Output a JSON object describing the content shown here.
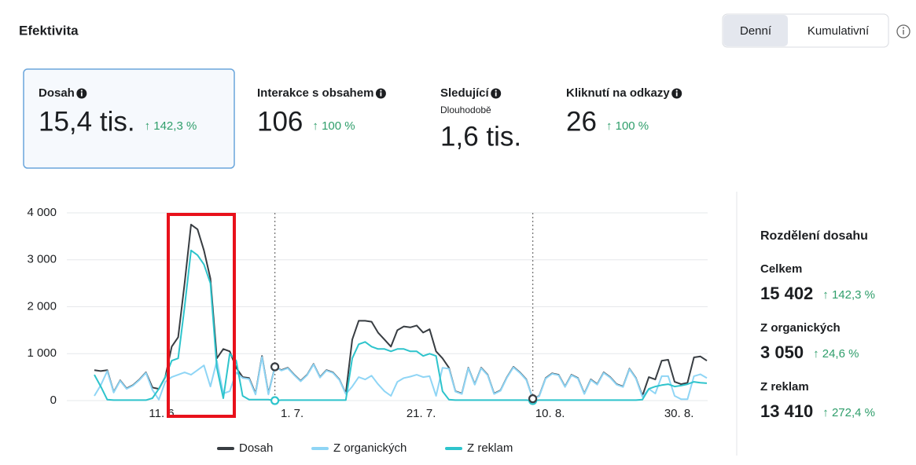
{
  "header": {
    "title": "Efektivita",
    "toggle": [
      "Denní",
      "Kumulativní"
    ]
  },
  "metrics": [
    {
      "label": "Dosah",
      "value": "15,4 tis.",
      "change": "↑ 142,3 %"
    },
    {
      "label": "Interakce s obsahem",
      "value": "106",
      "change": "↑ 100 %"
    },
    {
      "label": "Sledující",
      "sublabel": "Dlouhodobě",
      "value": "1,6 tis."
    },
    {
      "label": "Kliknutí na odkazy",
      "value": "26",
      "change": "↑ 100 %"
    }
  ],
  "breakdown": {
    "title": "Rozdělení dosahu",
    "items": [
      {
        "label": "Celkem",
        "value": "15 402",
        "change": "↑ 142,3 %"
      },
      {
        "label": "Z organických",
        "value": "3 050",
        "change": "↑ 24,6 %"
      },
      {
        "label": "Z reklam",
        "value": "13 410",
        "change": "↑ 272,4 %"
      }
    ]
  },
  "chart_data": {
    "type": "line",
    "categories": [
      null,
      null,
      null,
      null,
      null,
      null,
      null,
      null,
      "11. 6.",
      null,
      null,
      null,
      null,
      null,
      null,
      null,
      null,
      null,
      null,
      null,
      null,
      null,
      null,
      null,
      null,
      null,
      null,
      null,
      "1. 7.",
      null,
      null,
      null,
      null,
      null,
      null,
      null,
      null,
      null,
      null,
      null,
      null,
      null,
      null,
      null,
      null,
      null,
      null,
      null,
      "21. 7.",
      null,
      null,
      null,
      null,
      null,
      null,
      null,
      null,
      null,
      null,
      null,
      null,
      null,
      null,
      null,
      null,
      null,
      null,
      null,
      "10. 8.",
      null,
      null,
      null,
      null,
      null,
      null,
      null,
      null,
      null,
      null,
      null,
      null,
      null,
      null,
      null,
      null,
      null,
      null,
      null,
      "30. 8.",
      null,
      null,
      null,
      null,
      null,
      null,
      null
    ],
    "series": [
      {
        "name": "Dosah",
        "color": "#383d42",
        "values": [
          650,
          630,
          650,
          180,
          430,
          260,
          330,
          450,
          600,
          280,
          250,
          500,
          1150,
          1350,
          2500,
          3750,
          3650,
          3200,
          2600,
          900,
          1100,
          1050,
          700,
          500,
          480,
          150,
          950,
          150,
          720,
          650,
          700,
          550,
          420,
          550,
          780,
          500,
          650,
          600,
          450,
          150,
          1300,
          1700,
          1700,
          1680,
          1450,
          1300,
          1150,
          1500,
          1580,
          1560,
          1600,
          1450,
          1520,
          1050,
          900,
          700,
          200,
          150,
          700,
          350,
          700,
          550,
          150,
          220,
          500,
          720,
          600,
          450,
          40,
          100,
          480,
          580,
          550,
          300,
          550,
          480,
          150,
          450,
          350,
          600,
          500,
          350,
          300,
          680,
          480,
          100,
          500,
          450,
          850,
          870,
          400,
          350,
          380,
          920,
          940,
          850
        ]
      },
      {
        "name": "Z organických",
        "color": "#8fd5f5",
        "values": [
          100,
          330,
          630,
          170,
          420,
          250,
          320,
          440,
          590,
          230,
          20,
          400,
          500,
          550,
          600,
          550,
          650,
          750,
          300,
          850,
          150,
          200,
          600,
          480,
          460,
          130,
          930,
          130,
          720,
          640,
          690,
          540,
          410,
          540,
          770,
          490,
          640,
          590,
          440,
          140,
          300,
          500,
          450,
          530,
          350,
          200,
          100,
          400,
          480,
          510,
          550,
          500,
          520,
          100,
          700,
          680,
          190,
          140,
          690,
          340,
          690,
          540,
          140,
          210,
          490,
          710,
          590,
          440,
          40,
          90,
          470,
          570,
          540,
          290,
          540,
          470,
          140,
          440,
          340,
          590,
          490,
          340,
          290,
          670,
          470,
          80,
          250,
          150,
          520,
          520,
          100,
          30,
          30,
          520,
          560,
          480
        ]
      },
      {
        "name": "Z reklam",
        "color": "#2ec4cc",
        "values": [
          550,
          300,
          20,
          10,
          10,
          10,
          10,
          10,
          10,
          50,
          250,
          500,
          850,
          900,
          2000,
          3200,
          3100,
          2900,
          2500,
          700,
          50,
          1000,
          850,
          100,
          20,
          20,
          20,
          20,
          0,
          10,
          10,
          10,
          10,
          10,
          10,
          10,
          10,
          10,
          10,
          10,
          900,
          1200,
          1250,
          1150,
          1100,
          1100,
          1050,
          1100,
          1100,
          1050,
          1050,
          950,
          1000,
          950,
          200,
          20,
          10,
          10,
          10,
          10,
          10,
          10,
          10,
          10,
          10,
          10,
          10,
          10,
          0,
          10,
          10,
          10,
          10,
          10,
          10,
          10,
          10,
          10,
          10,
          10,
          10,
          10,
          10,
          10,
          10,
          20,
          250,
          300,
          330,
          350,
          300,
          320,
          350,
          400,
          380,
          370
        ]
      }
    ],
    "ylim": [
      0,
      4000
    ],
    "yticks": [
      0,
      {
        "value": 1000,
        "label": "1 000"
      },
      {
        "value": 2000,
        "label": "2 000"
      },
      {
        "value": 3000,
        "label": "3 000"
      },
      {
        "value": 4000,
        "label": "4 000"
      }
    ],
    "grid": true
  }
}
